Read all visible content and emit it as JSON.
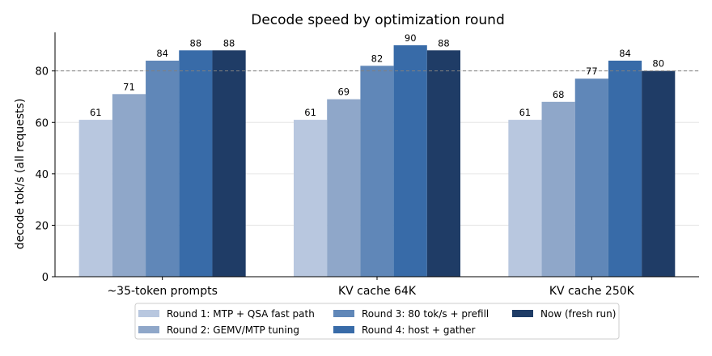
{
  "chart_data": {
    "type": "bar",
    "title": "Decode speed by optimization round",
    "xlabel": "",
    "ylabel": "decode tok/s (all requests)",
    "categories": [
      "~35-token prompts",
      "KV cache 64K",
      "KV cache 250K"
    ],
    "series": [
      {
        "name": "Round 1: MTP + QSA fast path",
        "color": "#b8c7df",
        "values": [
          61,
          61,
          61
        ]
      },
      {
        "name": "Round 2: GEMV/MTP tuning",
        "color": "#8fa7c9",
        "values": [
          71,
          69,
          68
        ]
      },
      {
        "name": "Round 3: 80 tok/s + prefill",
        "color": "#6087b8",
        "values": [
          84,
          82,
          77
        ]
      },
      {
        "name": "Round 4: host + gather",
        "color": "#386ba8",
        "values": [
          88,
          90,
          84
        ]
      },
      {
        "name": "Now (fresh run)",
        "color": "#1f3c66",
        "values": [
          88,
          88,
          80
        ]
      }
    ],
    "data_labels": [
      [
        "61",
        "71",
        "84",
        "88",
        "88"
      ],
      [
        "61",
        "69",
        "82",
        "90",
        "88"
      ],
      [
        "61",
        "68",
        "77",
        "84",
        "80"
      ]
    ],
    "ylim": [
      0,
      95
    ],
    "yticks": [
      0,
      20,
      40,
      60,
      80
    ],
    "reference_line": {
      "y": 80,
      "style": "dashed",
      "color": "#808080"
    },
    "grid": "horizontal",
    "legend_position": "bottom-center"
  }
}
